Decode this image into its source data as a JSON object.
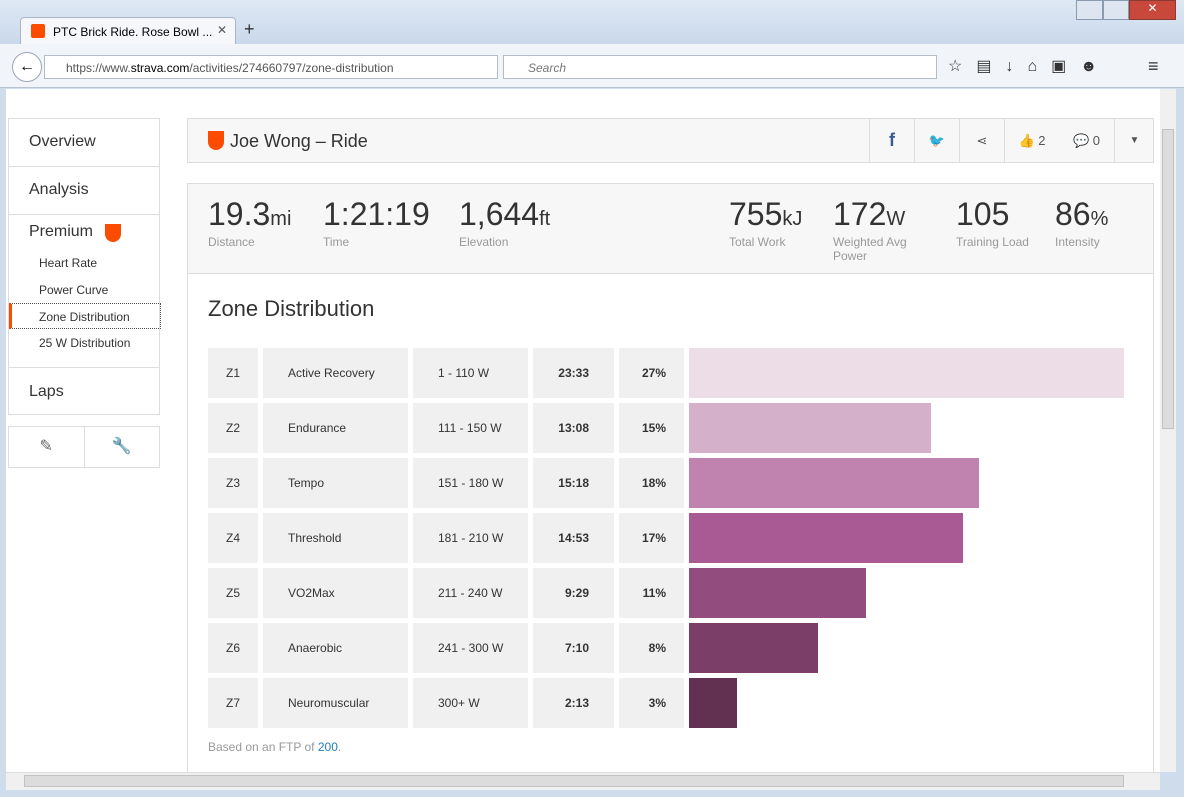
{
  "browser": {
    "tab_title": "PTC Brick Ride. Rose Bowl ...",
    "url_prefix": "https://www.",
    "url_domain": "strava.com",
    "url_path": "/activities/274660797/zone-distribution",
    "search_placeholder": "Search"
  },
  "sidebar": {
    "items": [
      "Overview",
      "Analysis"
    ],
    "premium": "Premium",
    "premium_items": [
      "Heart Rate",
      "Power Curve",
      "Zone Distribution",
      "25 W Distribution"
    ],
    "laps": "Laps"
  },
  "header": {
    "title": "Joe Wong – Ride",
    "kudos": 2,
    "comments": 0
  },
  "stats": [
    {
      "value": "19.3",
      "unit": "mi",
      "label": "Distance"
    },
    {
      "value": "1:21:19",
      "label": "Time"
    },
    {
      "value": "1,644",
      "unit": "ft",
      "label": "Elevation"
    },
    {
      "value": "755",
      "unit": "kJ",
      "label": "Total Work"
    },
    {
      "value": "172",
      "unit": "W",
      "label": "Weighted Avg Power"
    },
    {
      "value": "105",
      "label": "Training Load"
    },
    {
      "value": "86",
      "unit": "%",
      "label": "Intensity"
    }
  ],
  "zones": {
    "title": "Zone Distribution",
    "rows": [
      {
        "zone": "Z1",
        "name": "Active Recovery",
        "range": "1 - 110 W",
        "time": "23:33",
        "percent": 27,
        "percent_label": "27%",
        "color": "#eddde7"
      },
      {
        "zone": "Z2",
        "name": "Endurance",
        "range": "111 - 150 W",
        "time": "13:08",
        "percent": 15,
        "percent_label": "15%",
        "color": "#d5b0cb"
      },
      {
        "zone": "Z3",
        "name": "Tempo",
        "range": "151 - 180 W",
        "time": "15:18",
        "percent": 18,
        "percent_label": "18%",
        "color": "#c083b0"
      },
      {
        "zone": "Z4",
        "name": "Threshold",
        "range": "181 - 210 W",
        "time": "14:53",
        "percent": 17,
        "percent_label": "17%",
        "color": "#a95993"
      },
      {
        "zone": "Z5",
        "name": "VO2Max",
        "range": "211 - 240 W",
        "time": "9:29",
        "percent": 11,
        "percent_label": "11%",
        "color": "#924d7e"
      },
      {
        "zone": "Z6",
        "name": "Anaerobic",
        "range": "241 - 300 W",
        "time": "7:10",
        "percent": 8,
        "percent_label": "8%",
        "color": "#7a3e68"
      },
      {
        "zone": "Z7",
        "name": "Neuromuscular",
        "range": "300+ W",
        "time": "2:13",
        "percent": 3,
        "percent_label": "3%",
        "color": "#623152"
      }
    ],
    "footnote": "Based on an FTP of ",
    "ftp": 200,
    "footnote_end": "."
  }
}
